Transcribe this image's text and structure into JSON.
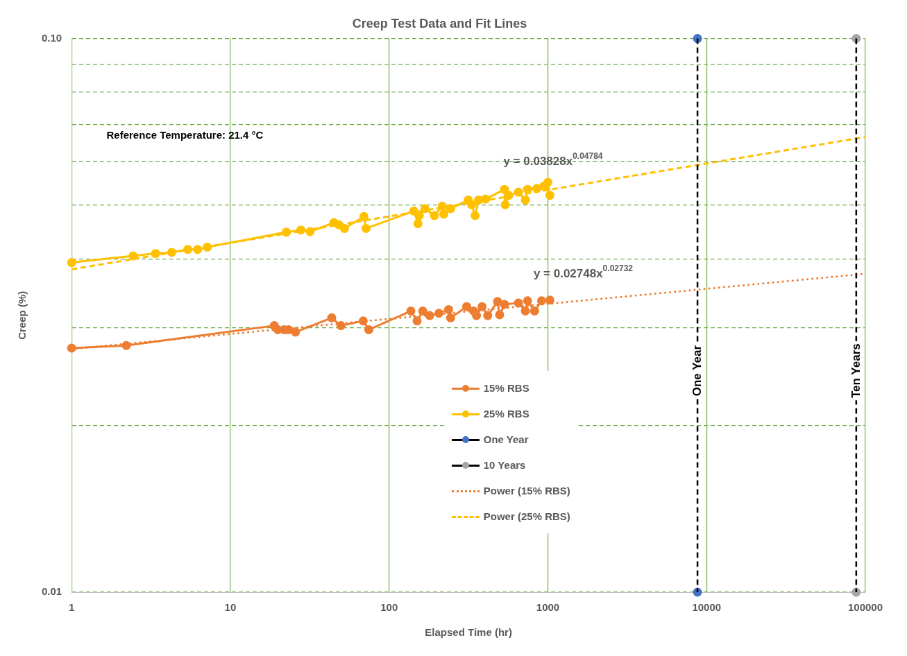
{
  "chart_data": {
    "type": "line",
    "title": "Creep Test Data and Fit Lines",
    "xlabel": "Elapsed Time (hr)",
    "ylabel": "Creep (%)",
    "log": "xy",
    "xlim": [
      1,
      100000
    ],
    "xticks": [
      1,
      10,
      100,
      1000,
      10000,
      100000
    ],
    "ylim": [
      0.01,
      0.1
    ],
    "yticks": [
      {
        "value": 0.01,
        "label": "0.01"
      },
      {
        "value": 0.02,
        "label": null
      },
      {
        "value": 0.03,
        "label": null
      },
      {
        "value": 0.04,
        "label": null
      },
      {
        "value": 0.05,
        "label": null
      },
      {
        "value": 0.06,
        "label": null
      },
      {
        "value": 0.07,
        "label": null
      },
      {
        "value": 0.08,
        "label": null
      },
      {
        "value": 0.09,
        "label": null
      },
      {
        "value": 0.1,
        "label": "0.10"
      }
    ],
    "grid": true,
    "legend": "bottom",
    "series": [
      {
        "name": "15% RBS",
        "type": "line",
        "color": "#ed7d31",
        "marker": "circle",
        "line_style": "solid",
        "x": [
          1,
          2.21,
          18.9,
          19.9,
          21.8,
          23.2,
          25.7,
          43.5,
          49.7,
          68.7,
          74.5,
          137,
          150,
          163,
          180,
          206,
          237,
          244,
          308,
          341,
          355,
          385,
          418,
          482,
          497,
          533,
          653,
          722,
          745,
          825,
          913,
          1030
        ],
        "values": [
          0.0276,
          0.0279,
          0.0303,
          0.0298,
          0.0298,
          0.0298,
          0.0295,
          0.0313,
          0.0303,
          0.0309,
          0.0298,
          0.0322,
          0.0309,
          0.0322,
          0.0316,
          0.0319,
          0.0324,
          0.0313,
          0.0328,
          0.0322,
          0.0316,
          0.0328,
          0.0316,
          0.0335,
          0.0317,
          0.0331,
          0.0333,
          0.0322,
          0.0336,
          0.0322,
          0.0336,
          0.0337
        ]
      },
      {
        "name": "25% RBS",
        "type": "line",
        "color": "#ffc000",
        "marker": "circle",
        "line_style": "solid",
        "x": [
          1,
          2.44,
          3.38,
          4.27,
          5.39,
          6.21,
          7.16,
          22.5,
          27.8,
          31.8,
          44.9,
          48.2,
          52.3,
          69.4,
          71.6,
          143,
          152,
          155,
          168,
          193,
          216,
          221,
          244,
          315,
          331,
          348,
          366,
          405,
          533,
          539,
          567,
          653,
          722,
          745,
          851,
          942,
          1000,
          1030
        ],
        "values": [
          0.0394,
          0.0405,
          0.0409,
          0.0411,
          0.0416,
          0.0416,
          0.042,
          0.0447,
          0.0451,
          0.0448,
          0.0465,
          0.0461,
          0.0454,
          0.0477,
          0.0454,
          0.0488,
          0.0463,
          0.0479,
          0.0493,
          0.0479,
          0.0498,
          0.0482,
          0.0493,
          0.0511,
          0.0501,
          0.0479,
          0.0511,
          0.0513,
          0.0534,
          0.0501,
          0.0521,
          0.0528,
          0.0511,
          0.0534,
          0.0536,
          0.0541,
          0.055,
          0.0521
        ]
      },
      {
        "name": "One Year",
        "type": "scatter",
        "color": "#4472c4",
        "marker": "circle",
        "x": [
          8760,
          8760
        ],
        "values": [
          0.01,
          0.1
        ]
      },
      {
        "name": "10 Years",
        "type": "scatter",
        "color": "#a5a5a5",
        "marker": "circle",
        "x": [
          87600,
          87600
        ],
        "values": [
          0.01,
          0.1
        ]
      },
      {
        "name": "Power (15% RBS)",
        "type": "line",
        "color": "#ed7d31",
        "marker": "none",
        "line_style": "dotted",
        "x": [
          1,
          100000
        ],
        "values": [
          0.0275,
          0.0376
        ]
      },
      {
        "name": "Power (25% RBS)",
        "type": "line",
        "color": "#ffc000",
        "marker": "none",
        "line_style": "dashed",
        "x": [
          1,
          100000
        ],
        "values": [
          0.0383,
          0.0664
        ]
      }
    ],
    "ref_lines": [
      {
        "axis": "x",
        "value": 8760,
        "label": "One Year",
        "color": "#000000",
        "line_style": "dashed"
      },
      {
        "axis": "x",
        "value": 87600,
        "label": "Ten Years",
        "color": "#000000",
        "line_style": "dashed"
      }
    ],
    "annotations": [
      "Reference Temperature: 21.4 °C",
      "y = 0.03828x$^{0.04784}$",
      "y = 0.02748x$^{0.02732}$"
    ]
  }
}
